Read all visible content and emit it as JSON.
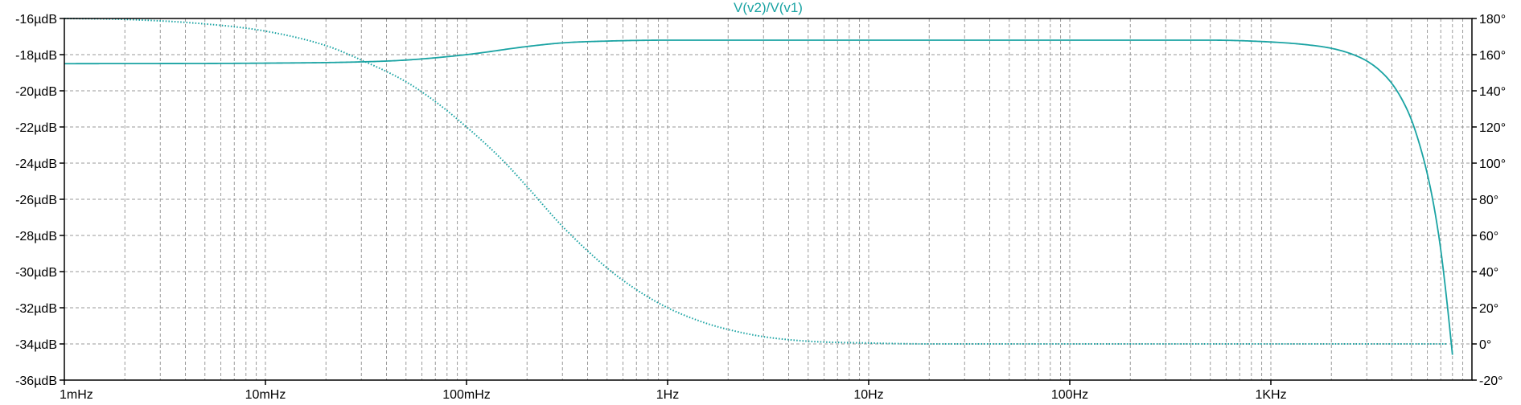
{
  "window": {
    "trace_label": "V(v2)/V(v1)"
  },
  "colors": {
    "trace": "#1aa3a3",
    "grid": "#9a9a9a",
    "axis": "#000000",
    "background": "#ffffff"
  },
  "chart_data": {
    "type": "line",
    "title": "V(v2)/V(v1)",
    "x_scale": "log",
    "x_unit": "Hz",
    "xlim": [
      0.001,
      10000
    ],
    "x_ticks": [
      {
        "value": 0.001,
        "label": "1mHz"
      },
      {
        "value": 0.01,
        "label": "10mHz"
      },
      {
        "value": 0.1,
        "label": "100mHz"
      },
      {
        "value": 1,
        "label": "1Hz"
      },
      {
        "value": 10,
        "label": "10Hz"
      },
      {
        "value": 100,
        "label": "100Hz"
      },
      {
        "value": 1000,
        "label": "1KHz"
      }
    ],
    "y_left": {
      "unit": "µdB",
      "ylim": [
        -36,
        -16
      ],
      "ticks": [
        {
          "value": -16,
          "label": "-16µdB"
        },
        {
          "value": -18,
          "label": "-18µdB"
        },
        {
          "value": -20,
          "label": "-20µdB"
        },
        {
          "value": -22,
          "label": "-22µdB"
        },
        {
          "value": -24,
          "label": "-24µdB"
        },
        {
          "value": -26,
          "label": "-26µdB"
        },
        {
          "value": -28,
          "label": "-28µdB"
        },
        {
          "value": -30,
          "label": "-30µdB"
        },
        {
          "value": -32,
          "label": "-32µdB"
        },
        {
          "value": -34,
          "label": "-34µdB"
        },
        {
          "value": -36,
          "label": "-36µdB"
        }
      ]
    },
    "y_right": {
      "unit": "°",
      "ylim": [
        -20,
        180
      ],
      "ticks": [
        {
          "value": 180,
          "label": "180°"
        },
        {
          "value": 160,
          "label": "160°"
        },
        {
          "value": 140,
          "label": "140°"
        },
        {
          "value": 120,
          "label": "120°"
        },
        {
          "value": 100,
          "label": "100°"
        },
        {
          "value": 80,
          "label": "80°"
        },
        {
          "value": 60,
          "label": "60°"
        },
        {
          "value": 40,
          "label": "40°"
        },
        {
          "value": 20,
          "label": "20°"
        },
        {
          "value": 0,
          "label": "0°"
        },
        {
          "value": -20,
          "label": "-20°"
        }
      ]
    },
    "grid": true,
    "series": [
      {
        "axis": "left",
        "style": "dotted",
        "points": [
          [
            0.001,
            -16.0
          ],
          [
            0.002,
            -16.05
          ],
          [
            0.005,
            -16.3
          ],
          [
            0.01,
            -16.7
          ],
          [
            0.02,
            -17.5
          ],
          [
            0.03,
            -18.3
          ],
          [
            0.05,
            -19.5
          ],
          [
            0.07,
            -20.6
          ],
          [
            0.1,
            -22.0
          ],
          [
            0.15,
            -23.8
          ],
          [
            0.2,
            -25.3
          ],
          [
            0.3,
            -27.5
          ],
          [
            0.5,
            -29.8
          ],
          [
            0.7,
            -31.0
          ],
          [
            1,
            -32.0
          ],
          [
            1.5,
            -32.8
          ],
          [
            2,
            -33.2
          ],
          [
            3,
            -33.6
          ],
          [
            5,
            -33.85
          ],
          [
            10,
            -33.95
          ],
          [
            20,
            -34.0
          ],
          [
            100,
            -34.0
          ],
          [
            1000,
            -34.0
          ],
          [
            7500,
            -34.0
          ]
        ]
      },
      {
        "axis": "right",
        "style": "solid",
        "points": [
          [
            0.001,
            155.0
          ],
          [
            0.01,
            155.3
          ],
          [
            0.03,
            156.0
          ],
          [
            0.05,
            157.0
          ],
          [
            0.1,
            160.0
          ],
          [
            0.2,
            164.5
          ],
          [
            0.3,
            166.5
          ],
          [
            0.5,
            167.5
          ],
          [
            1,
            168.0
          ],
          [
            100,
            168.0
          ],
          [
            500,
            168.0
          ],
          [
            1000,
            167.0
          ],
          [
            1500,
            165.5
          ],
          [
            2000,
            163.5
          ],
          [
            2500,
            160.5
          ],
          [
            3000,
            156.5
          ],
          [
            3500,
            151.0
          ],
          [
            4000,
            144.0
          ],
          [
            4500,
            135.0
          ],
          [
            5000,
            124.0
          ],
          [
            5500,
            110.0
          ],
          [
            6000,
            94.0
          ],
          [
            6500,
            75.0
          ],
          [
            7000,
            52.0
          ],
          [
            7500,
            24.0
          ],
          [
            7800,
            6.0
          ],
          [
            8000,
            -6.0
          ]
        ]
      }
    ]
  }
}
